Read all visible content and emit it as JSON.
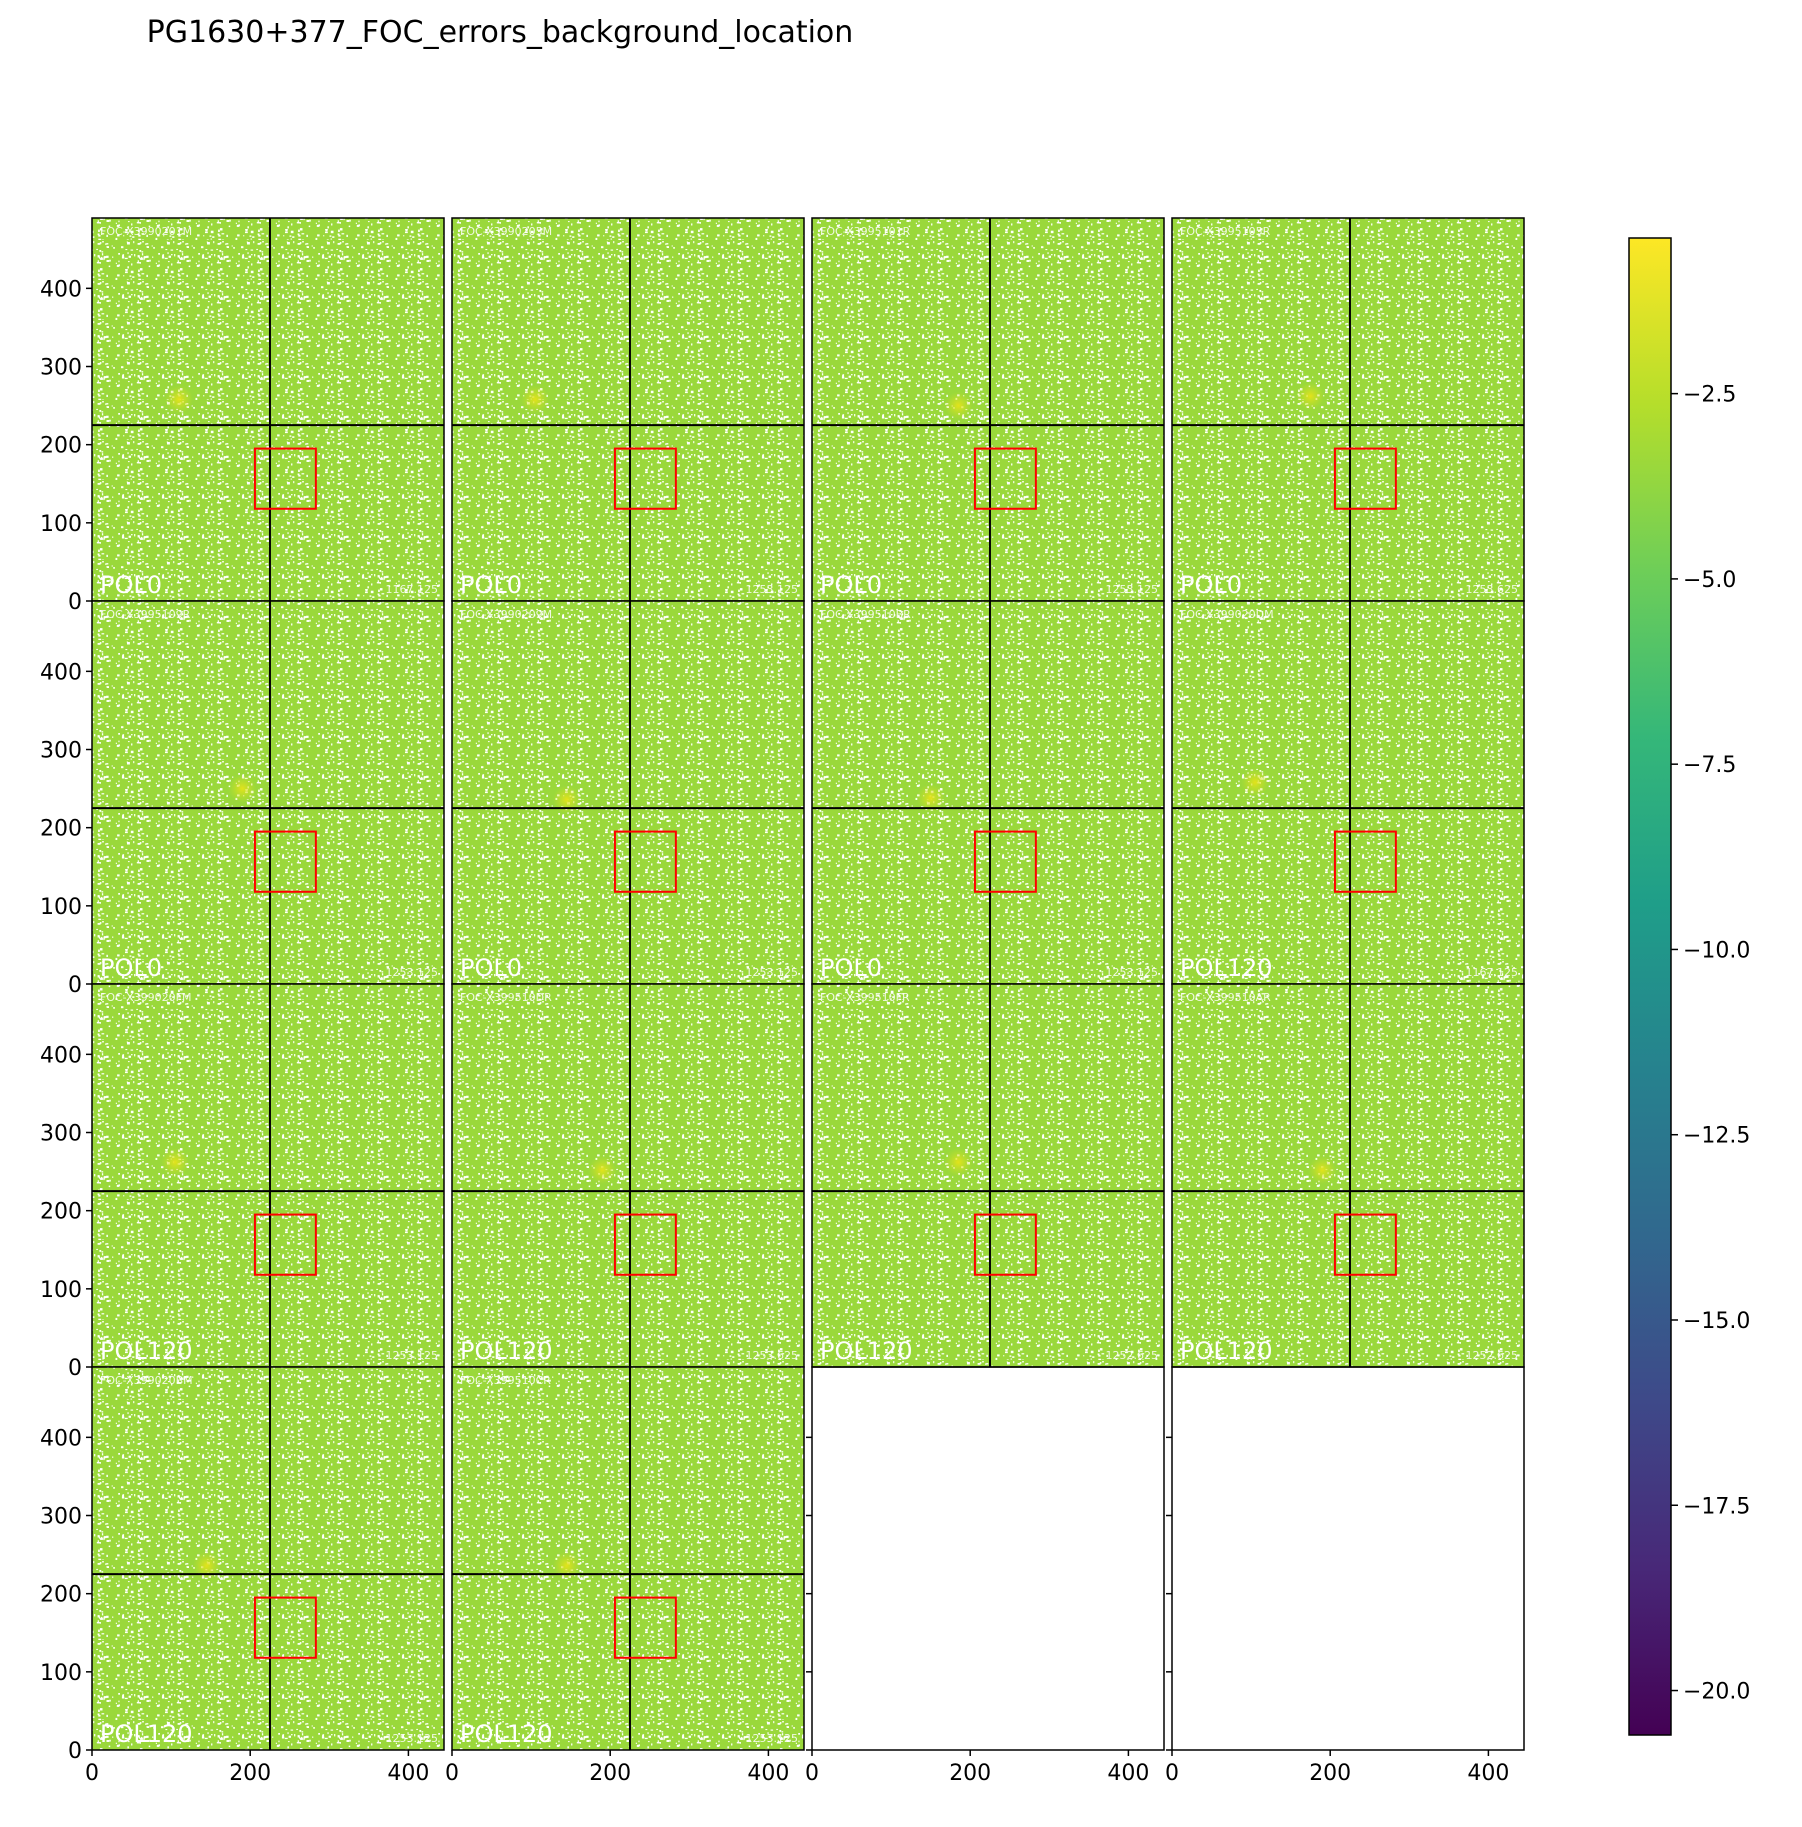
{
  "chart_data": {
    "type": "heatmap",
    "title": "PG1630+377_FOC_errors_background_location",
    "grid": false,
    "layout": {
      "rows": 4,
      "cols": 4
    },
    "x_ticks": [
      0,
      200,
      400
    ],
    "y_ticks": [
      0,
      100,
      200,
      300,
      400
    ],
    "xlim": [
      0,
      445
    ],
    "ylim": [
      0,
      490
    ],
    "crosshair": {
      "x": 225,
      "y": 225
    },
    "box": {
      "x": [
        206,
        283
      ],
      "y": [
        118,
        195
      ]
    },
    "colorbar": {
      "colormap": "viridis",
      "range": [
        -20.6,
        -0.4
      ],
      "ticks": [
        -2.5,
        -5.0,
        -7.5,
        -10.0,
        -12.5,
        -15.0,
        -17.5,
        -20.0
      ],
      "tick_labels": [
        "−2.5",
        "−5.0",
        "−7.5",
        "−10.0",
        "−12.5",
        "−15.0",
        "−17.5",
        "−20.0"
      ]
    },
    "panels": [
      {
        "filter": "POL0",
        "rootname": "FOC-X3990201M",
        "exptime": "1167.125",
        "source": [
          110,
          258
        ],
        "empty": false
      },
      {
        "filter": "POL0",
        "rootname": "FOC-X3990205M",
        "exptime": "1253.125",
        "source": [
          105,
          258
        ],
        "empty": false
      },
      {
        "filter": "POL0",
        "rootname": "FOC-X3995101R",
        "exptime": "1253.125",
        "source": [
          185,
          250
        ],
        "empty": false
      },
      {
        "filter": "POL0",
        "rootname": "FOC-X3995105R",
        "exptime": "1253.625",
        "source": [
          175,
          262
        ],
        "empty": false
      },
      {
        "filter": "POL0",
        "rootname": "FOC-X3995109R",
        "exptime": "1253.125",
        "source": [
          190,
          250
        ],
        "empty": false
      },
      {
        "filter": "POL0",
        "rootname": "FOC-X3990209M",
        "exptime": "1253.125",
        "source": [
          145,
          236
        ],
        "empty": false
      },
      {
        "filter": "POL0",
        "rootname": "FOC-X399510BR",
        "exptime": "1253.125",
        "source": [
          150,
          238
        ],
        "empty": false
      },
      {
        "filter": "POL120",
        "rootname": "FOC-X399020DM",
        "exptime": "1167.125",
        "source": [
          105,
          258
        ],
        "empty": false
      },
      {
        "filter": "POL120",
        "rootname": "FOC-X399020FM",
        "exptime": "1253.125",
        "source": [
          105,
          262
        ],
        "empty": false
      },
      {
        "filter": "POL120",
        "rootname": "FOC-X399510DR",
        "exptime": "1253.625",
        "source": [
          190,
          252
        ],
        "empty": false
      },
      {
        "filter": "POL120",
        "rootname": "FOC-X399510FR",
        "exptime": "1252.625",
        "source": [
          185,
          262
        ],
        "empty": false
      },
      {
        "filter": "POL120",
        "rootname": "FOC-X399510AR",
        "exptime": "1252.625",
        "source": [
          190,
          252
        ],
        "empty": false
      },
      {
        "filter": "POL120",
        "rootname": "FOC-X399020BM",
        "exptime": "1253.125",
        "source": [
          145,
          236
        ],
        "empty": false
      },
      {
        "filter": "POL120",
        "rootname": "FOC-X399510CR",
        "exptime": "1253.125",
        "source": [
          145,
          236
        ],
        "empty": false
      },
      {
        "empty": true
      },
      {
        "empty": true
      }
    ]
  },
  "colors": {
    "image_base": "#9ad83b",
    "image_dots": "#ffffff",
    "crosshair": "#000000",
    "box": "#ff0000",
    "overlay_text": "#ffffff",
    "axes": "#000000",
    "viridis": [
      "#440154",
      "#482878",
      "#3e4989",
      "#31688e",
      "#26828e",
      "#1f9e89",
      "#35b779",
      "#6ece58",
      "#b5de2b",
      "#fde725"
    ]
  }
}
